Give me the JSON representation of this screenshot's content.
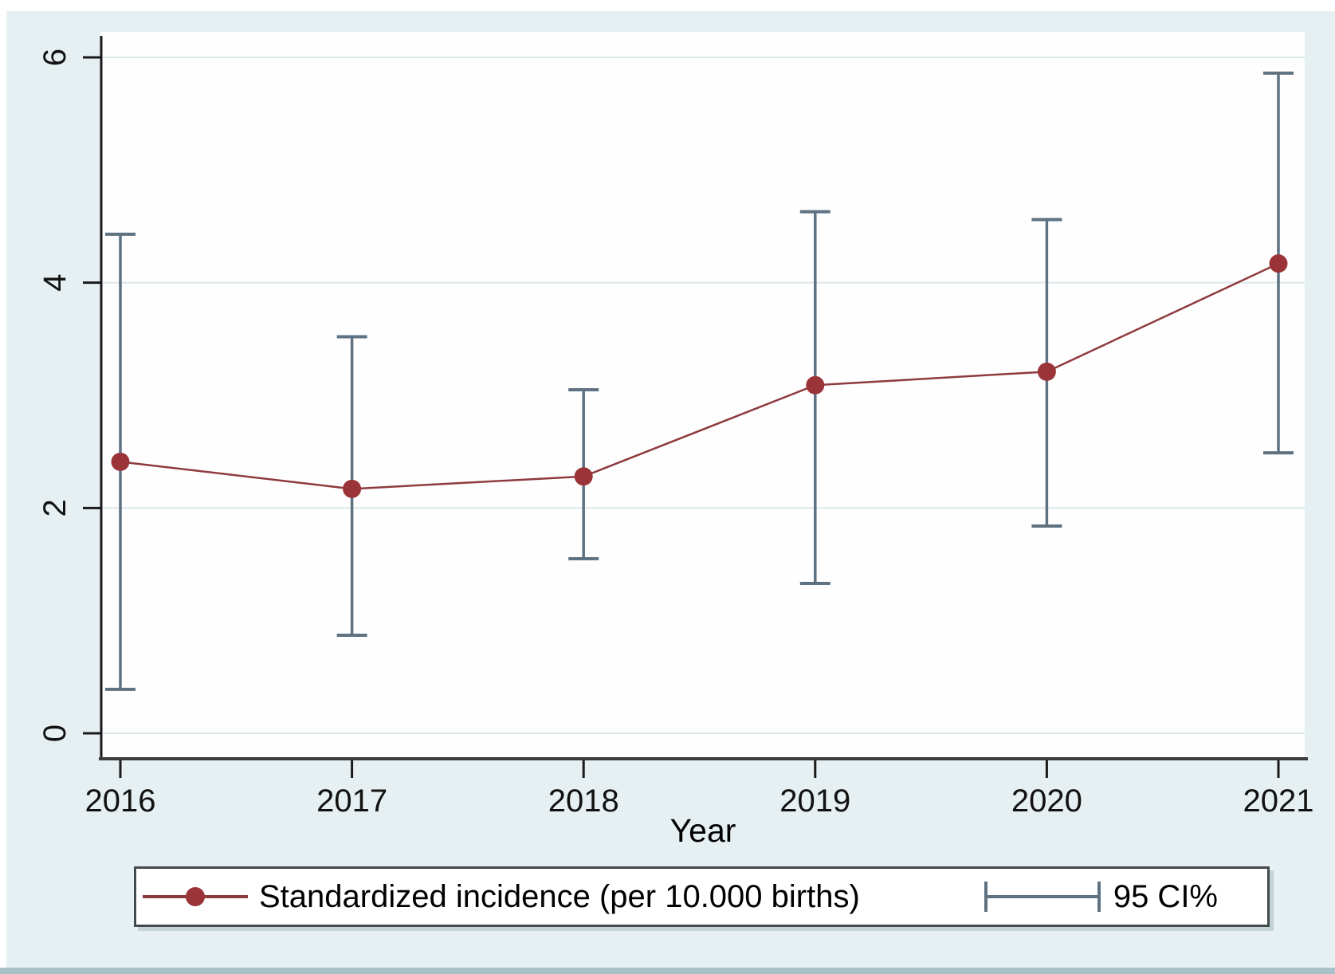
{
  "figure": {
    "xlabel": "Year",
    "legend": {
      "series_label": "Standardized incidence (per 10.000 births)",
      "ci_label": "95 CI%"
    }
  },
  "colors": {
    "background": "#e6eff1",
    "plot_background": "#fefefe",
    "gridline": "#dce7eb",
    "axis": "#2a2a2a",
    "tick_label": "#111111",
    "marker": "#9a3438",
    "series_line": "#8e3b3f",
    "error_bar": "#5e7282",
    "legend_border": "#424a4d",
    "bottom_bar": "#a7c3c8"
  },
  "chart_data": {
    "type": "line",
    "title": "",
    "xlabel": "Year",
    "ylabel": "",
    "x": [
      2016,
      2017,
      2018,
      2019,
      2020,
      2021
    ],
    "series": [
      {
        "name": "Standardized incidence (per 10.000 births)",
        "values": [
          2.41,
          2.17,
          2.28,
          3.09,
          3.21,
          4.17
        ]
      }
    ],
    "error_bars_95ci": [
      {
        "x": 2016,
        "low": 0.39,
        "high": 4.43
      },
      {
        "x": 2017,
        "low": 0.87,
        "high": 3.52
      },
      {
        "x": 2018,
        "low": 1.55,
        "high": 3.05
      },
      {
        "x": 2019,
        "low": 1.33,
        "high": 4.63
      },
      {
        "x": 2020,
        "low": 1.84,
        "high": 4.56
      },
      {
        "x": 2021,
        "low": 2.49,
        "high": 5.86
      }
    ],
    "ylim": [
      0,
      6
    ],
    "yticks": [
      0,
      2,
      4,
      6
    ],
    "grid": true,
    "legend_position": "bottom",
    "legend_entries": [
      "Standardized incidence (per 10.000 births)",
      "95 CI%"
    ]
  }
}
